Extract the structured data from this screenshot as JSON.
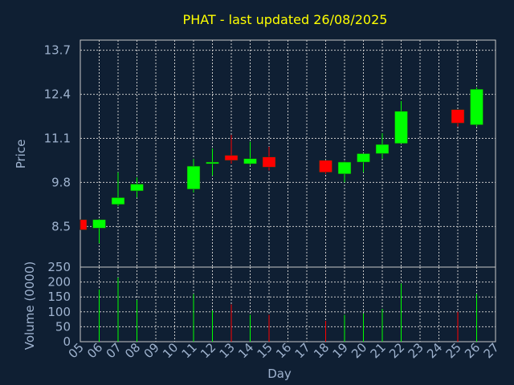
{
  "chart_data": {
    "type": "candlestick",
    "title": "PHAT - last updated 26/08/2025",
    "xlabel": "Day",
    "price_panel": {
      "ylabel": "Price",
      "yticks": [
        "13.7",
        "12.4",
        "11.1",
        "9.8",
        "8.5"
      ],
      "ylim": [
        7.3,
        14.0
      ]
    },
    "volume_panel": {
      "ylabel": "Volume (0000)",
      "yticks": [
        "250",
        "200",
        "150",
        "100",
        "50",
        "0"
      ],
      "ylim": [
        0,
        250
      ]
    },
    "x_tick_labels": [
      "05",
      "06",
      "07",
      "08",
      "09",
      "10",
      "11",
      "12",
      "13",
      "14",
      "15",
      "16",
      "17",
      "18",
      "19",
      "20",
      "21",
      "22",
      "23",
      "24",
      "25",
      "26",
      "27"
    ],
    "colors": {
      "up": "#00ff00",
      "down": "#ff0000",
      "background": "#0f1f33",
      "grid": "#c8c8c8",
      "title": "#ffff00",
      "text": "#9fb3cf"
    },
    "grid": true,
    "candles": [
      {
        "day": "05",
        "open": 8.7,
        "close": 8.4,
        "high": 8.7,
        "low": 8.4,
        "volume": 0
      },
      {
        "day": "06",
        "open": 8.45,
        "close": 8.7,
        "high": 8.72,
        "low": 8.0,
        "volume": 175
      },
      {
        "day": "07",
        "open": 9.15,
        "close": 9.35,
        "high": 10.1,
        "low": 9.1,
        "volume": 215
      },
      {
        "day": "08",
        "open": 9.55,
        "close": 9.75,
        "high": 9.95,
        "low": 9.35,
        "volume": 140
      },
      {
        "day": "11",
        "open": 9.6,
        "close": 10.28,
        "high": 10.5,
        "low": 9.5,
        "volume": 160
      },
      {
        "day": "12",
        "open": 10.35,
        "close": 10.4,
        "high": 10.8,
        "low": 10.0,
        "volume": 105
      },
      {
        "day": "13",
        "open": 10.6,
        "close": 10.45,
        "high": 11.2,
        "low": 10.35,
        "volume": 125
      },
      {
        "day": "14",
        "open": 10.35,
        "close": 10.5,
        "high": 11.0,
        "low": 10.3,
        "volume": 90
      },
      {
        "day": "15",
        "open": 10.55,
        "close": 10.25,
        "high": 10.85,
        "low": 10.15,
        "volume": 90
      },
      {
        "day": "18",
        "open": 10.45,
        "close": 10.1,
        "high": 10.45,
        "low": 10.05,
        "volume": 70
      },
      {
        "day": "19",
        "open": 10.05,
        "close": 10.4,
        "high": 10.42,
        "low": 9.8,
        "volume": 90
      },
      {
        "day": "20",
        "open": 10.4,
        "close": 10.65,
        "high": 10.65,
        "low": 10.1,
        "volume": 95
      },
      {
        "day": "21",
        "open": 10.65,
        "close": 10.92,
        "high": 11.25,
        "low": 10.5,
        "volume": 110
      },
      {
        "day": "22",
        "open": 10.95,
        "close": 11.9,
        "high": 12.2,
        "low": 10.95,
        "volume": 195
      },
      {
        "day": "25",
        "open": 11.95,
        "close": 11.55,
        "high": 11.95,
        "low": 11.45,
        "volume": 100
      },
      {
        "day": "26",
        "open": 11.5,
        "close": 12.55,
        "high": 12.6,
        "low": 11.45,
        "volume": 160
      }
    ]
  }
}
